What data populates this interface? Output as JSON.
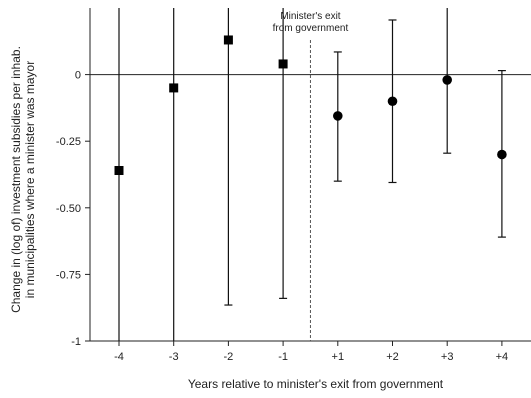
{
  "chart_data": {
    "type": "scatter",
    "title": "",
    "xlabel": "Years relative to minister's exit from government",
    "ylabel_lines": [
      "Change in (log of) investment subsidies per inhab.",
      "in municipalities where a minister was mayor"
    ],
    "categories": [
      "-4",
      "-3",
      "-2",
      "-1",
      "+1",
      "+2",
      "+3",
      "+4"
    ],
    "y_ticks": [
      0,
      -0.25,
      -0.5,
      -0.75,
      -1
    ],
    "y_tick_labels": [
      "0",
      "-0.25",
      "-0.50",
      "-0.75",
      "-1"
    ],
    "ylim": [
      -1,
      0.25
    ],
    "reference_line": 0,
    "points": [
      {
        "x": "-4",
        "y": -0.36,
        "ci_low": -1.0,
        "ci_high": 0.25,
        "marker": "square"
      },
      {
        "x": "-3",
        "y": -0.05,
        "ci_low": -1.0,
        "ci_high": 0.25,
        "marker": "square"
      },
      {
        "x": "-2",
        "y": 0.13,
        "ci_low": -0.865,
        "ci_high": 0.25,
        "marker": "square"
      },
      {
        "x": "-1",
        "y": 0.04,
        "ci_low": -0.84,
        "ci_high": 0.25,
        "marker": "square"
      },
      {
        "x": "+1",
        "y": -0.155,
        "ci_low": -0.4,
        "ci_high": 0.085,
        "marker": "circle"
      },
      {
        "x": "+2",
        "y": -0.1,
        "ci_low": -0.405,
        "ci_high": 0.205,
        "marker": "circle"
      },
      {
        "x": "+3",
        "y": -0.02,
        "ci_low": -0.295,
        "ci_high": 0.25,
        "marker": "circle"
      },
      {
        "x": "+4",
        "y": -0.3,
        "ci_low": -0.61,
        "ci_high": 0.015,
        "marker": "circle"
      }
    ],
    "event_line": {
      "between": [
        "-1",
        "+1"
      ],
      "style": "dashed",
      "label_lines": [
        "Minister's exit",
        "from government"
      ]
    },
    "grid": false,
    "legend": "none"
  }
}
